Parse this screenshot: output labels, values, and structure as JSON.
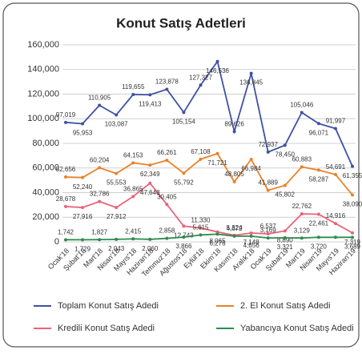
{
  "chart_data": {
    "type": "line",
    "title": "Konut Satış Adetleri",
    "categories": [
      "Ocak'18",
      "Şubat'18",
      "Mart'18",
      "Nisan'18",
      "Mayıs'18",
      "Haziran'18",
      "Temmuz'18",
      "Ağustos'18",
      "Eylül'18",
      "Ekim'18",
      "Kasım'18",
      "Aralık'18",
      "Ocak'19",
      "Şubat'19",
      "Mart'19",
      "Nisan'19",
      "Mayıs'19",
      "Haziran'19"
    ],
    "series": [
      {
        "name": "Toplam Konut Satış Adedi",
        "color": "#3f51a3",
        "values": [
          97019,
          95953,
          110905,
          103087,
          119655,
          119413,
          123878,
          105154,
          127327,
          146536,
          89626,
          136845,
          72937,
          78450,
          105046,
          96071,
          91997,
          61355
        ],
        "value_labels": [
          "97,019",
          "95,953",
          "110,905",
          "103,087",
          "119,655",
          "119,413",
          "123,878",
          "105,154",
          "127,327",
          "146,536",
          "89,626",
          "136,845",
          "72,937",
          "78,450",
          "105,046",
          "96,071",
          "91,997",
          "61,355"
        ]
      },
      {
        "name": "2. El Konut Satış Adedi",
        "color": "#e8832a",
        "values": [
          52656,
          52240,
          60204,
          55553,
          64153,
          62349,
          66261,
          55792,
          67108,
          71721,
          48805,
          66984,
          41889,
          45802,
          60883,
          58287,
          54691,
          38090
        ],
        "value_labels": [
          "52,656",
          "52,240",
          "60,204",
          "55,553",
          "64,153",
          "62,349",
          "66,261",
          "55,792",
          "67,108",
          "71,721",
          "48,805",
          "66,984",
          "41,889",
          "45,802",
          "60,883",
          "58,287",
          "54,691",
          "38,090"
        ]
      },
      {
        "name": "Kredili Konut Satış Adedi",
        "color": "#e8637a",
        "values": [
          28678,
          27916,
          32786,
          27912,
          36865,
          47648,
          30405,
          12743,
          11330,
          8065,
          5324,
          7148,
          6537,
          8890,
          22762,
          22461,
          14916,
          7319
        ],
        "value_labels": [
          "28,678",
          "27,916",
          "32,786",
          "27,912",
          "36,865",
          "47,648",
          "30,405",
          "12,743",
          "11,330",
          "8,065",
          "5,324",
          "7,148",
          "6,537",
          "8,890",
          "22,762",
          "22,461",
          "14,916",
          "7,319"
        ]
      },
      {
        "name": "Yabancıya Konut Satış Adedi",
        "color": "#2e8b4e",
        "values": [
          1742,
          1729,
          1827,
          2043,
          2415,
          2060,
          2858,
          3866,
          5615,
          6276,
          4672,
          4656,
          3169,
          3321,
          3129,
          3720,
          3700,
          3689
        ],
        "value_labels": [
          "1,742",
          "1,729",
          "1,827",
          "2,043",
          "2,415",
          "2,060",
          "2,858",
          "3,866",
          "5,615",
          "6,276",
          "4,672",
          "4,656",
          "3,169",
          "3,321",
          "3,129",
          "3,720",
          null,
          "3,689"
        ]
      }
    ],
    "ylim": [
      0,
      160000
    ],
    "yticks": [
      0,
      {
        "value": 20000,
        "label": "20,000"
      },
      {
        "value": 40000,
        "label": "40,000"
      },
      {
        "value": 60000,
        "label": "60,000"
      },
      {
        "value": 80000,
        "label": "80,000"
      },
      {
        "value": 100000,
        "label": "100,000"
      },
      {
        "value": 120000,
        "label": "120,000"
      },
      {
        "value": 140000,
        "label": "140,000"
      },
      {
        "value": 160000,
        "label": "160,000"
      }
    ],
    "grid": true
  }
}
